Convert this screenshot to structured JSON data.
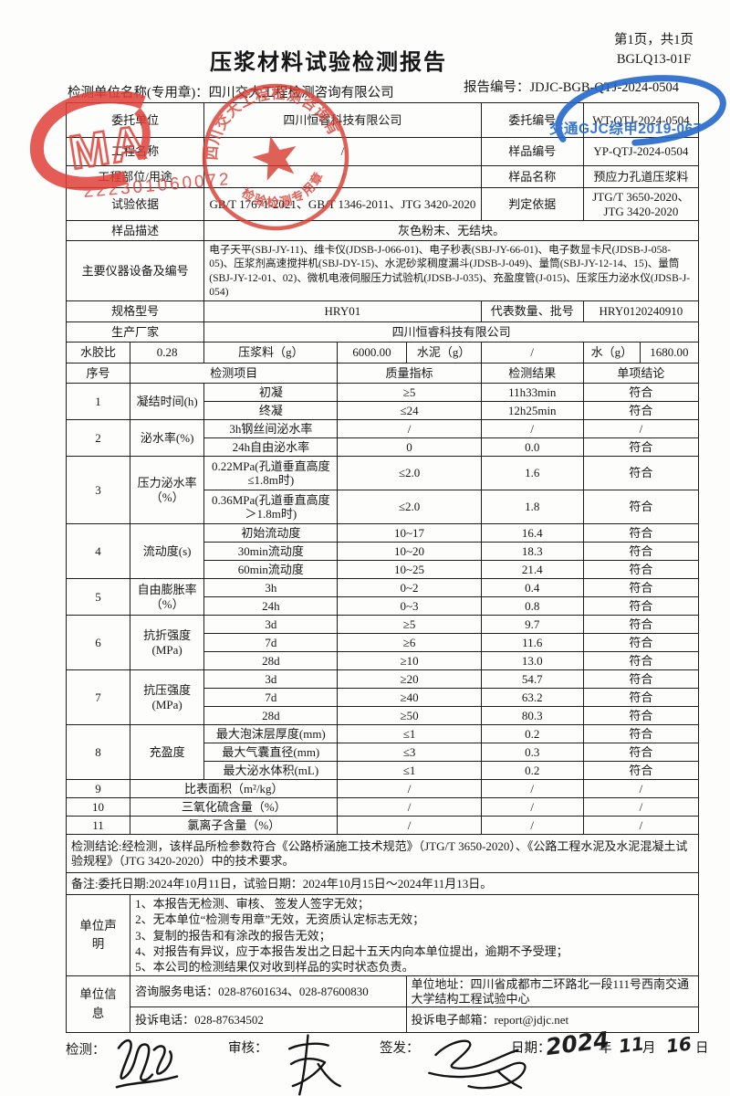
{
  "header": {
    "page_note": "第1页，共1页",
    "form_code": "BGLQ13-01F",
    "title": "压浆材料试验检测报告",
    "unit_line": "检测单位名称(专用章)：四川交大工程检测咨询有限公司",
    "report_no_label": "报告编号：",
    "report_no": "JDJC-BGB-QTJ-2024-0504"
  },
  "stamps": {
    "cma": {
      "letters": "MA",
      "number": "222301060072",
      "color": "#e04038"
    },
    "round_seal": {
      "company": "四川交大工程检测咨询有限公司",
      "caption": "检验检测专用章",
      "color": "#d8392f"
    },
    "blue_seal": {
      "text": "交通GJC综甲2019-067",
      "color": "#2468cc"
    }
  },
  "info_rows": [
    {
      "type": "split",
      "label": "委托单位",
      "value": "四川恒睿科技有限公司",
      "label2": "委托编号",
      "value2": "WT-QTJ-2024-0504"
    },
    {
      "type": "split",
      "label": "工程名称",
      "value": "/",
      "label2": "样品编号",
      "value2": "YP-QTJ-2024-0504"
    },
    {
      "type": "split",
      "label": "工程部位/用途",
      "value": "/",
      "label2": "样品名称",
      "value2": "预应力孔道压浆料"
    },
    {
      "type": "split",
      "label": "试验依据",
      "value": "GB/T 17671-2021、GB/T 1346-2011、JTG 3420-2020",
      "label2": "判定依据",
      "value2": "JTG/T 3650-2020、JTG 3420-2020"
    },
    {
      "type": "full",
      "label": "样品描述",
      "value": "灰色粉末、无结块。"
    },
    {
      "type": "full",
      "label": "主要仪器设备及编号",
      "cls": "instruments",
      "value": "电子天平(SBJ-JY-11)、维卡仪(JDSB-J-066-01)、电子秒表(SBJ-JY-66-01)、电子数显卡尺(JDSB-J-058-05)、压浆剂高速搅拌机(SBJ-DY-15)、水泥砂浆稠度漏斗(JDSB-J-049)、量筒(SBJ-JY-12-14、15)、量筒(SBJ-JY-12-01、02)、微机电液伺服压力试验机(JDSB-J-035)、充盈度管(J-015)、压浆压力泌水仪(JDSB-J-054)"
    },
    {
      "type": "split",
      "label": "规格型号",
      "value": "HRY01",
      "label2": "代表数量、批号",
      "value2": "HRY0120240910"
    },
    {
      "type": "full",
      "label": "生产厂家",
      "value": "四川恒睿科技有限公司"
    }
  ],
  "mix_row": {
    "cells": [
      "水胶比",
      "0.28",
      "压浆料（g）",
      "6000.00",
      "水泥（g）",
      "/",
      "水（g）",
      "1680.00"
    ]
  },
  "results": {
    "header": [
      "序号",
      "检测项目",
      "质量指标",
      "检测结果",
      "单项结论"
    ],
    "groups": [
      {
        "no": "1",
        "name": "凝结时间(h)",
        "items": [
          {
            "sub": "初凝",
            "spec": "≥5",
            "result": "11h33min",
            "verdict": "符合"
          },
          {
            "sub": "终凝",
            "spec": "≤24",
            "result": "12h25min",
            "verdict": "符合"
          }
        ]
      },
      {
        "no": "2",
        "name": "泌水率(%)",
        "items": [
          {
            "sub": "3h钢丝间泌水率",
            "spec": "/",
            "result": "/",
            "verdict": "/"
          },
          {
            "sub": "24h自由泌水率",
            "spec": "0",
            "result": "0.0",
            "verdict": "符合"
          }
        ]
      },
      {
        "no": "3",
        "name": "压力泌水率（%）",
        "items": [
          {
            "sub": "0.22MPa(孔道垂直高度≤1.8m时)",
            "spec": "≤2.0",
            "result": "1.6",
            "verdict": "符合",
            "tall": true
          },
          {
            "sub": "0.36MPa(孔道垂直高度＞1.8m时)",
            "spec": "≤2.0",
            "result": "1.8",
            "verdict": "符合",
            "tall": true
          }
        ]
      },
      {
        "no": "4",
        "name": "流动度(s)",
        "items": [
          {
            "sub": "初始流动度",
            "spec": "10~17",
            "result": "16.4",
            "verdict": "符合"
          },
          {
            "sub": "30min流动度",
            "spec": "10~20",
            "result": "18.3",
            "verdict": "符合"
          },
          {
            "sub": "60min流动度",
            "spec": "10~25",
            "result": "21.4",
            "verdict": "符合"
          }
        ]
      },
      {
        "no": "5",
        "name": "自由膨胀率（%）",
        "items": [
          {
            "sub": "3h",
            "spec": "0~2",
            "result": "0.4",
            "verdict": "符合"
          },
          {
            "sub": "24h",
            "spec": "0~3",
            "result": "0.8",
            "verdict": "符合"
          }
        ]
      },
      {
        "no": "6",
        "name": "抗折强度(MPa)",
        "items": [
          {
            "sub": "3d",
            "spec": "≥5",
            "result": "9.7",
            "verdict": "符合"
          },
          {
            "sub": "7d",
            "spec": "≥6",
            "result": "11.6",
            "verdict": "符合"
          },
          {
            "sub": "28d",
            "spec": "≥10",
            "result": "13.0",
            "verdict": "符合"
          }
        ]
      },
      {
        "no": "7",
        "name": "抗压强度(MPa)",
        "items": [
          {
            "sub": "3d",
            "spec": "≥20",
            "result": "54.7",
            "verdict": "符合"
          },
          {
            "sub": "7d",
            "spec": "≥40",
            "result": "63.2",
            "verdict": "符合"
          },
          {
            "sub": "28d",
            "spec": "≥50",
            "result": "80.3",
            "verdict": "符合"
          }
        ]
      },
      {
        "no": "8",
        "name": "充盈度",
        "items": [
          {
            "sub": "最大泡沫层厚度(mm)",
            "spec": "≤1",
            "result": "0.2",
            "verdict": "符合"
          },
          {
            "sub": "最大气囊直径(mm)",
            "spec": "≤3",
            "result": "0.3",
            "verdict": "符合"
          },
          {
            "sub": "最大泌水体积(mL)",
            "spec": "≤1",
            "result": "0.2",
            "verdict": "符合"
          }
        ]
      },
      {
        "no": "9",
        "name": "比表面积（m²/kg）",
        "merged": true,
        "items": [
          {
            "spec": "/",
            "result": "/",
            "verdict": "/"
          }
        ]
      },
      {
        "no": "10",
        "name": "三氧化硫含量（%）",
        "merged": true,
        "items": [
          {
            "spec": "/",
            "result": "/",
            "verdict": "/"
          }
        ]
      },
      {
        "no": "11",
        "name": "氯离子含量（%）",
        "merged": true,
        "items": [
          {
            "spec": "/",
            "result": "/",
            "verdict": "/"
          }
        ]
      }
    ]
  },
  "conclusion": "检测结论:经检测，该样品所检参数符合《公路桥涵施工技术规范》（JTG/T 3650-2020）、《公路工程水泥及水泥混凝土试验规程》（JTG 3420-2020）中的技术要求。",
  "remark": "备注:委托日期:2024年10月11日，试验日期：2024年10月15日～2024年11月13日。",
  "statement": {
    "label": "单位声明",
    "items": [
      "1、本报告无检测、审核、 签发人签字无效；",
      "2、无本单位“检测专用章”无效，无资质认定标志无效；",
      "3、复制的报告和有涂改的报告无效；",
      "4、对报告有异议，应于本报告发出之日起十五天内向本单位提出，逾期不予受理；",
      "5、本公司的检测结果仅对收到样品的实时状态负责。"
    ]
  },
  "unit_info": {
    "label": "单位信息",
    "phone": "咨询服务电话：028-87601634、028-87600830",
    "address": "单位地址：四川省成都市二环路北一段111号西南交通大学结构工程试验中心",
    "complaint_phone": "投诉电话：028-87634502",
    "email": "投诉电子邮箱：report@jdjc.net"
  },
  "footer": {
    "inspect_label": "检测：",
    "review_label": "审核：",
    "issue_label": "签发：",
    "date_label": "日期：",
    "year": "2024",
    "year_unit": "年",
    "month": "11",
    "month_unit": "月",
    "day": "16",
    "day_unit": "日"
  }
}
